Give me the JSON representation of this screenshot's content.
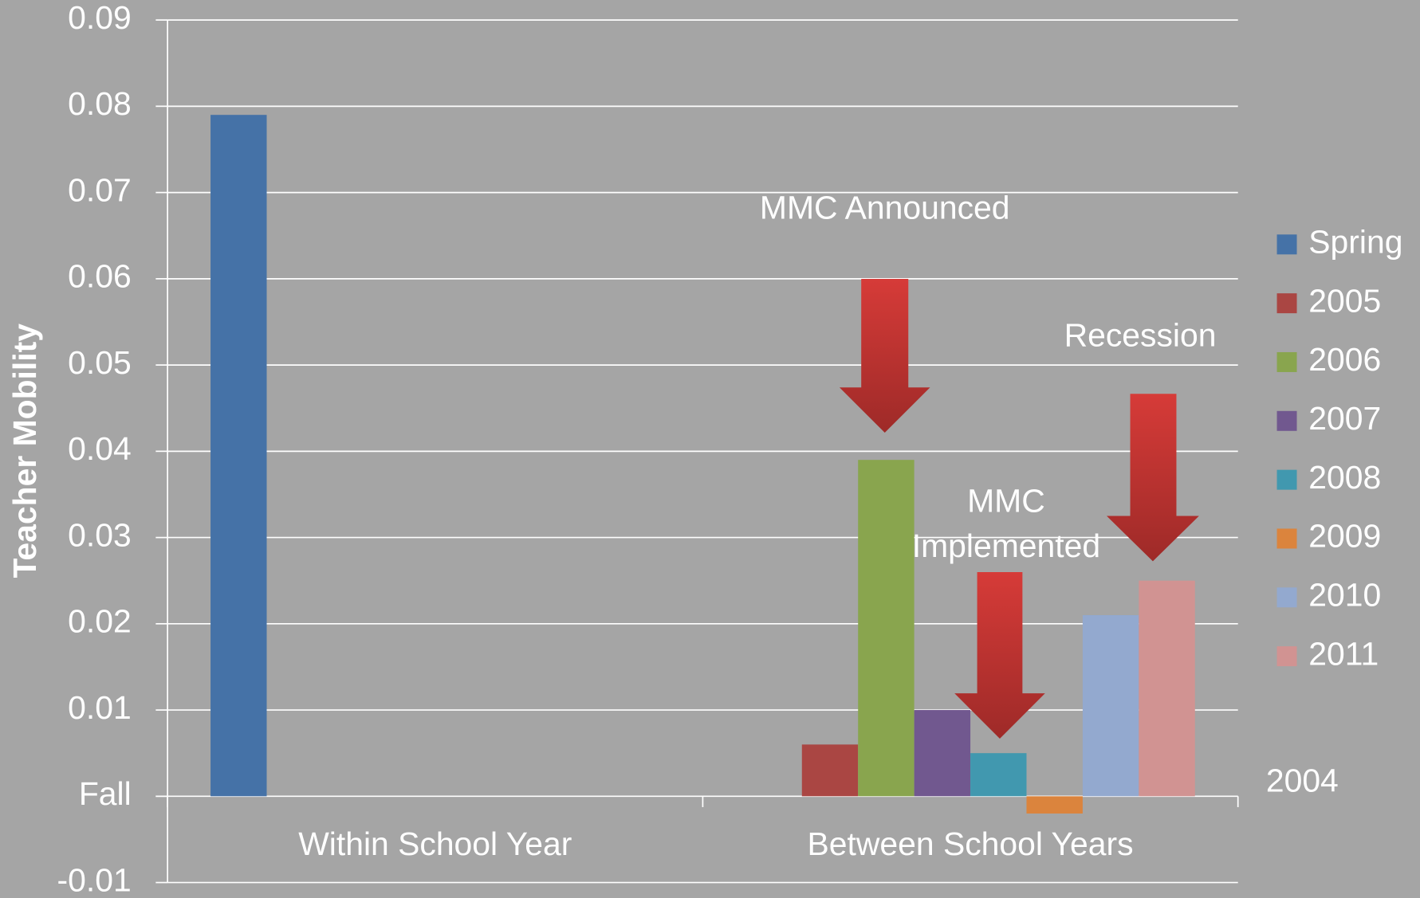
{
  "chart_data": {
    "type": "bar",
    "y_label": "Teacher Mobility",
    "categories": [
      "Within School Year",
      "Between School Years"
    ],
    "series": [
      {
        "name": "Spring",
        "color": "#4572a7",
        "values": [
          0.079,
          null
        ]
      },
      {
        "name": "2005",
        "color": "#aa4643",
        "values": [
          null,
          0.006
        ]
      },
      {
        "name": "2006",
        "color": "#89a54e",
        "values": [
          null,
          0.039
        ]
      },
      {
        "name": "2007",
        "color": "#71588f",
        "values": [
          null,
          0.01
        ]
      },
      {
        "name": "2008",
        "color": "#4198af",
        "values": [
          null,
          0.005
        ]
      },
      {
        "name": "2009",
        "color": "#db843d",
        "values": [
          null,
          -0.002
        ]
      },
      {
        "name": "2010",
        "color": "#93a9cf",
        "values": [
          null,
          0.021
        ]
      },
      {
        "name": "2011",
        "color": "#d19392",
        "values": [
          null,
          0.025
        ]
      }
    ],
    "ylim": [
      -0.01,
      0.09
    ],
    "yticks": [
      -0.01,
      {
        "value": 0,
        "label": "Fall"
      },
      0.01,
      0.02,
      0.03,
      0.04,
      0.05,
      0.06,
      0.07,
      0.08,
      0.09
    ],
    "grid": true,
    "legend": "right",
    "annotations": [
      {
        "lines": [
          "MMC Announced"
        ]
      },
      {
        "lines": [
          "MMC",
          "Implemented"
        ]
      },
      {
        "lines": [
          "Recession"
        ]
      },
      {
        "lines": [
          "2004"
        ]
      }
    ]
  }
}
